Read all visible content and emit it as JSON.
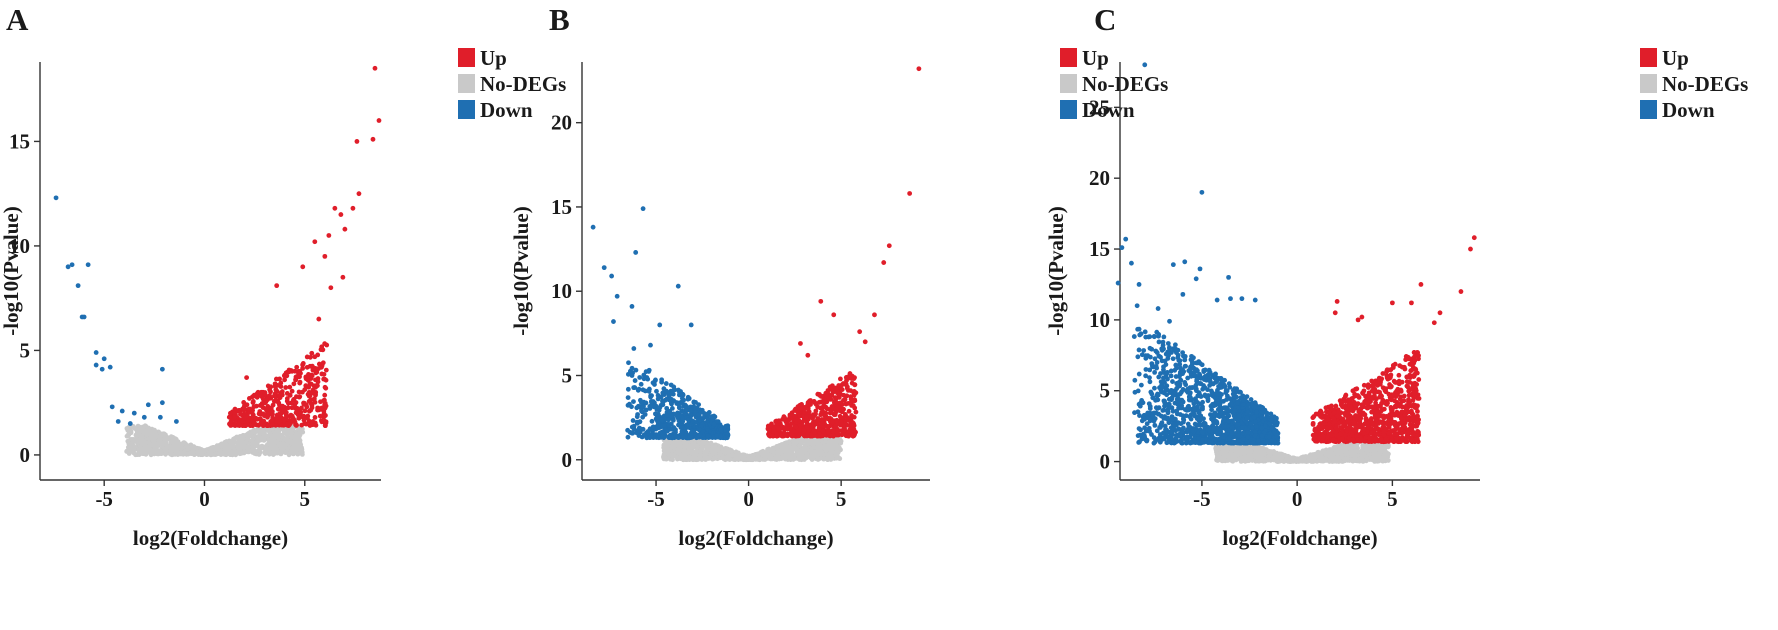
{
  "colors": {
    "up": "#e01e2a",
    "no": "#c9c9c9",
    "down": "#1f6fb2"
  },
  "chart_data": [
    {
      "type": "scatter",
      "subtype": "volcano",
      "panel": "A",
      "xlabel": "log2(Foldchange)",
      "ylabel": "-log10(Pvalue)",
      "xlim": [
        -8.2,
        8.8
      ],
      "ylim": [
        -1.2,
        18.8
      ],
      "xticks": [
        -5,
        0,
        5
      ],
      "xtick_labels": [
        "-5",
        "0",
        "5"
      ],
      "yticks": [
        0,
        5,
        10,
        15
      ],
      "ytick_labels": [
        "0",
        "5",
        "10",
        "15"
      ],
      "legend": [
        {
          "key": "up",
          "label": "Up"
        },
        {
          "key": "no",
          "label": "No-DEGs"
        },
        {
          "key": "down",
          "label": "Down"
        }
      ],
      "series": {
        "up": [
          [
            8.5,
            18.5
          ],
          [
            8.7,
            16.0
          ],
          [
            8.4,
            15.1
          ],
          [
            7.6,
            15.0
          ],
          [
            7.7,
            12.5
          ],
          [
            7.4,
            11.8
          ],
          [
            6.5,
            11.8
          ],
          [
            6.8,
            11.5
          ],
          [
            7.0,
            10.8
          ],
          [
            6.2,
            10.5
          ],
          [
            5.5,
            10.2
          ],
          [
            6.0,
            9.5
          ],
          [
            4.9,
            9.0
          ],
          [
            3.6,
            8.1
          ],
          [
            6.9,
            8.5
          ],
          [
            6.3,
            8.0
          ],
          [
            5.7,
            6.5
          ],
          [
            2.1,
            3.7
          ]
        ],
        "up_cloud": {
          "xmin": 1.2,
          "xmax": 6.1,
          "ymin": 1.4,
          "ymax_at_xmax": 5.4,
          "ymax_at_xmin": 2.0,
          "count": 460
        },
        "no_cloud": {
          "xmin": -3.9,
          "xmax": 4.9,
          "ymin": 0.0,
          "ymax": 1.4,
          "count": 1200
        },
        "down": [
          [
            -7.4,
            12.3
          ],
          [
            -6.6,
            9.1
          ],
          [
            -6.8,
            9.0
          ],
          [
            -5.8,
            9.1
          ],
          [
            -6.3,
            8.1
          ],
          [
            -6.1,
            6.6
          ],
          [
            -6.0,
            6.6
          ],
          [
            -5.4,
            4.9
          ],
          [
            -5.0,
            4.6
          ],
          [
            -5.4,
            4.3
          ],
          [
            -5.1,
            4.1
          ],
          [
            -4.7,
            4.2
          ],
          [
            -2.1,
            4.1
          ],
          [
            -4.6,
            2.3
          ],
          [
            -4.1,
            2.1
          ],
          [
            -3.5,
            2.0
          ],
          [
            -2.8,
            2.4
          ],
          [
            -2.1,
            2.5
          ],
          [
            -3.0,
            1.8
          ],
          [
            -3.7,
            1.5
          ],
          [
            -2.2,
            1.8
          ],
          [
            -1.4,
            1.6
          ],
          [
            -4.3,
            1.6
          ]
        ],
        "down_cloud": null
      }
    },
    {
      "type": "scatter",
      "subtype": "volcano",
      "panel": "B",
      "xlabel": "log2(Foldchange)",
      "ylabel": "-log10(Pvalue)",
      "xlim": [
        -9.0,
        9.8
      ],
      "ylim": [
        -1.2,
        23.6
      ],
      "xticks": [
        -5,
        0,
        5
      ],
      "xtick_labels": [
        "-5",
        "0",
        "5"
      ],
      "yticks": [
        0,
        5,
        10,
        15,
        20
      ],
      "ytick_labels": [
        "0",
        "5",
        "10",
        "15",
        "20"
      ],
      "legend": [
        {
          "key": "up",
          "label": "Up"
        },
        {
          "key": "no",
          "label": "No-DEGs"
        },
        {
          "key": "down",
          "label": "Down"
        }
      ],
      "series": {
        "up": [
          [
            9.2,
            23.2
          ],
          [
            8.7,
            15.8
          ],
          [
            7.6,
            12.7
          ],
          [
            7.3,
            11.7
          ],
          [
            6.8,
            8.6
          ],
          [
            6.0,
            7.6
          ],
          [
            6.3,
            7.0
          ],
          [
            3.9,
            9.4
          ],
          [
            4.6,
            8.6
          ],
          [
            2.8,
            6.9
          ],
          [
            3.2,
            6.2
          ]
        ],
        "up_cloud": {
          "xmin": 1.0,
          "xmax": 5.8,
          "ymin": 1.4,
          "ymax_at_xmax": 5.4,
          "ymax_at_xmin": 2.0,
          "count": 560
        },
        "no_cloud": {
          "xmin": -4.6,
          "xmax": 5.0,
          "ymin": 0.0,
          "ymax": 1.4,
          "count": 1300
        },
        "down": [
          [
            -8.4,
            13.8
          ],
          [
            -5.7,
            14.9
          ],
          [
            -6.1,
            12.3
          ],
          [
            -7.8,
            11.4
          ],
          [
            -7.4,
            10.9
          ],
          [
            -3.8,
            10.3
          ],
          [
            -7.1,
            9.7
          ],
          [
            -6.3,
            9.1
          ],
          [
            -7.3,
            8.2
          ],
          [
            -4.8,
            8.0
          ],
          [
            -3.1,
            8.0
          ],
          [
            -6.2,
            6.6
          ],
          [
            -5.3,
            6.8
          ]
        ],
        "down_cloud": {
          "xmin": -6.6,
          "xmax": -1.1,
          "ymin": 1.3,
          "ymax_at_xmin": 6.4,
          "ymax_at_xmax": 2.0,
          "count": 620
        }
      }
    },
    {
      "type": "scatter",
      "subtype": "volcano",
      "panel": "C",
      "xlabel": "log2(Foldchange)",
      "ylabel": "-log10(Pvalue)",
      "xlim": [
        -9.3,
        9.6
      ],
      "ylim": [
        -1.3,
        28.2
      ],
      "xticks": [
        -5,
        0,
        5
      ],
      "xtick_labels": [
        "-5",
        "0",
        "5"
      ],
      "yticks": [
        0,
        5,
        10,
        15,
        20,
        25
      ],
      "ytick_labels": [
        "0",
        "5",
        "10",
        "15",
        "20",
        "25"
      ],
      "legend": [
        {
          "key": "up",
          "label": "Up"
        },
        {
          "key": "no",
          "label": "No-DEGs"
        },
        {
          "key": "down",
          "label": "Down"
        }
      ],
      "series": {
        "up": [
          [
            9.3,
            15.8
          ],
          [
            9.1,
            15.0
          ],
          [
            8.6,
            12.0
          ],
          [
            6.5,
            12.5
          ],
          [
            6.0,
            11.2
          ],
          [
            5.0,
            11.2
          ],
          [
            2.1,
            11.3
          ],
          [
            3.2,
            10.0
          ],
          [
            3.4,
            10.2
          ],
          [
            7.5,
            10.5
          ],
          [
            7.2,
            9.8
          ],
          [
            2.0,
            10.5
          ]
        ],
        "up_cloud": {
          "xmin": 0.8,
          "xmax": 6.4,
          "ymin": 1.4,
          "ymax_at_xmax": 8.0,
          "ymax_at_xmin": 3.2,
          "count": 900
        },
        "no_cloud": {
          "xmin": -4.3,
          "xmax": 4.8,
          "ymin": 0.0,
          "ymax": 1.4,
          "count": 1300
        },
        "down": [
          [
            -8.0,
            28.0
          ],
          [
            -5.0,
            19.0
          ],
          [
            -9.0,
            15.7
          ],
          [
            -9.2,
            15.1
          ],
          [
            -9.4,
            12.6
          ],
          [
            -8.7,
            14.0
          ],
          [
            -6.5,
            13.9
          ],
          [
            -5.9,
            14.1
          ],
          [
            -5.1,
            13.6
          ],
          [
            -5.3,
            12.9
          ],
          [
            -3.6,
            13.0
          ],
          [
            -8.3,
            12.5
          ],
          [
            -4.2,
            11.4
          ],
          [
            -3.5,
            11.5
          ],
          [
            -2.9,
            11.5
          ],
          [
            -2.2,
            11.4
          ],
          [
            -7.3,
            10.8
          ],
          [
            -6.0,
            11.8
          ],
          [
            -6.7,
            9.9
          ],
          [
            -8.4,
            11.0
          ]
        ],
        "down_cloud": {
          "xmin": -8.6,
          "xmax": -1.0,
          "ymin": 1.3,
          "ymax_at_xmin": 10.5,
          "ymax_at_xmax": 3.0,
          "count": 1500
        }
      }
    }
  ]
}
